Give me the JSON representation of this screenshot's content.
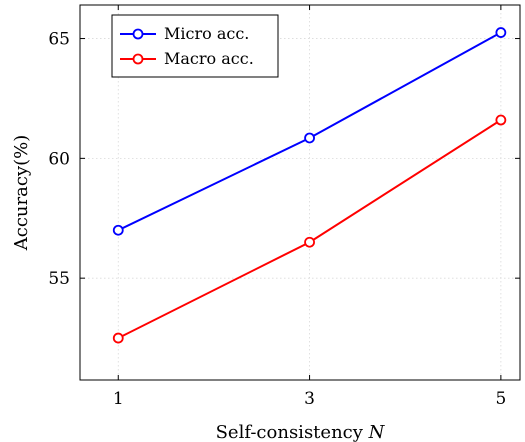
{
  "chart_data": {
    "type": "line",
    "x": [
      1,
      3,
      5
    ],
    "xlabel_text": "Self-consistency ",
    "xlabel_var": "N",
    "ylabel": "Accuracy(%)",
    "xlim": [
      0.6,
      5.2
    ],
    "ylim": [
      50.75,
      66.4
    ],
    "xticks": [
      "1",
      "3",
      "5"
    ],
    "yticks": [
      "55",
      "60",
      "65"
    ],
    "grid": true,
    "legend_position": "top-left",
    "series": [
      {
        "name": "Micro acc.",
        "color": "#0000ff",
        "values": [
          57.0,
          60.85,
          65.25
        ]
      },
      {
        "name": "Macro acc.",
        "color": "#ff0000",
        "values": [
          52.5,
          56.5,
          61.6
        ]
      }
    ]
  }
}
